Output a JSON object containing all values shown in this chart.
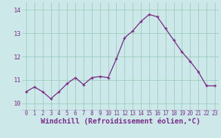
{
  "x": [
    0,
    1,
    2,
    3,
    4,
    5,
    6,
    7,
    8,
    9,
    10,
    11,
    12,
    13,
    14,
    15,
    16,
    17,
    18,
    19,
    20,
    21,
    22,
    23
  ],
  "y": [
    10.5,
    10.7,
    10.5,
    10.2,
    10.5,
    10.85,
    11.1,
    10.8,
    11.1,
    11.15,
    11.1,
    11.9,
    12.8,
    13.1,
    13.5,
    13.8,
    13.7,
    13.2,
    12.7,
    12.2,
    11.8,
    11.35,
    10.75,
    10.75
  ],
  "line_color": "#7b2d8b",
  "marker": "+",
  "marker_size": 3,
  "line_width": 1.0,
  "xlabel": "Windchill (Refroidissement éolien,°C)",
  "xtick_labels": [
    "0",
    "1",
    "2",
    "3",
    "4",
    "5",
    "6",
    "7",
    "8",
    "9",
    "10",
    "11",
    "12",
    "13",
    "14",
    "15",
    "16",
    "17",
    "18",
    "19",
    "20",
    "21",
    "22",
    "23"
  ],
  "ytick_labels": [
    "10",
    "11",
    "12",
    "13",
    "14"
  ],
  "yticks": [
    10,
    11,
    12,
    13,
    14
  ],
  "ylim": [
    9.7,
    14.3
  ],
  "xlim": [
    -0.5,
    23.5
  ],
  "bg_color": "#cce8e8",
  "grid_color": "#99ccbb",
  "xtick_fontsize": 5.5,
  "ytick_fontsize": 6.5,
  "xlabel_fontsize": 7.5
}
